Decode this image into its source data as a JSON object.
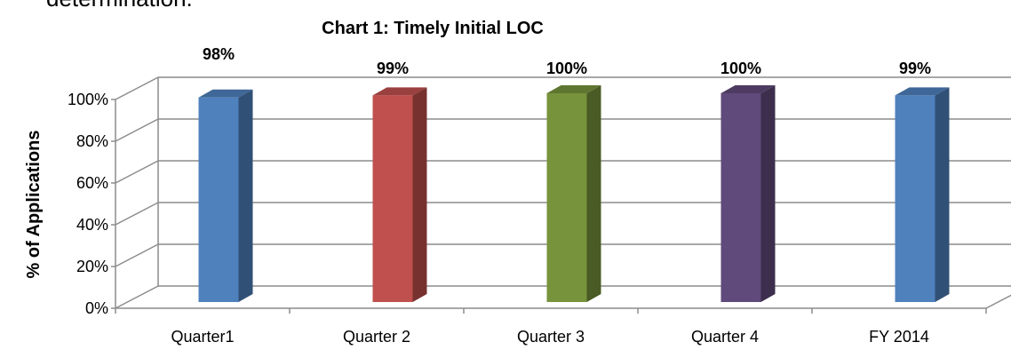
{
  "page": {
    "top_text": "determination."
  },
  "chart_data": {
    "type": "bar",
    "title": "Chart 1: Timely Initial LOC",
    "xlabel": "",
    "ylabel": "% of Applications",
    "categories": [
      "Quarter1",
      "Quarter 2",
      "Quarter 3",
      "Quarter 4",
      "FY 2014"
    ],
    "values": [
      98,
      99,
      100,
      100,
      99
    ],
    "value_labels": [
      "98%",
      "99%",
      "100%",
      "100%",
      "99%"
    ],
    "colors": [
      "#4F81BD",
      "#C0504D",
      "#77933C",
      "#604A7B",
      "#4F81BD"
    ],
    "ylim": [
      0,
      100
    ],
    "yticks": [
      "0%",
      "20%",
      "40%",
      "60%",
      "80%",
      "100%"
    ],
    "grid": true,
    "legend": "none",
    "style": "3d-column"
  }
}
